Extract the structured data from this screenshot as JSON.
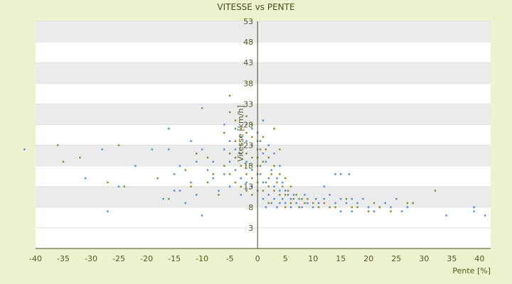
{
  "chart_data": {
    "type": "scatter",
    "title": "VITESSE vs PENTE",
    "xlabel": "Pente [%]",
    "ylabel": "Vitesse [km/h]",
    "xlim": [
      -40,
      42
    ],
    "ylim": [
      -2,
      53
    ],
    "x_ticks": [
      "-40",
      "-35",
      "-30",
      "-25",
      "-20",
      "-15",
      "-10",
      "-5",
      "0",
      "5",
      "10",
      "15",
      "20",
      "25",
      "30",
      "35",
      "40"
    ],
    "y_ticks": [
      "3",
      "8",
      "13",
      "18",
      "23",
      "28",
      "33",
      "38",
      "43",
      "48",
      "53"
    ],
    "y_tick_values": [
      3,
      8,
      13,
      18,
      23,
      28,
      33,
      38,
      43,
      48,
      53
    ],
    "grid": true,
    "legend": "none",
    "colors": {
      "series_a": "#3d8fe0",
      "series_b": "#8a8a1c",
      "band": "#ebebeb",
      "axis": "#4a4a1c"
    },
    "series": [
      {
        "values": [
          [
            -42,
            22
          ],
          [
            -31,
            15
          ],
          [
            -28,
            22
          ],
          [
            -27,
            7
          ],
          [
            -25,
            13
          ],
          [
            -22,
            18
          ],
          [
            -19,
            22
          ],
          [
            -17,
            10
          ],
          [
            -16,
            22
          ],
          [
            -16,
            27
          ],
          [
            -15,
            12
          ],
          [
            -15,
            16
          ],
          [
            -14,
            12
          ],
          [
            -14,
            18
          ],
          [
            -13,
            9
          ],
          [
            -12,
            14
          ],
          [
            -12,
            24
          ],
          [
            -11,
            19
          ],
          [
            -11,
            11
          ],
          [
            -10,
            22
          ],
          [
            -10,
            6
          ],
          [
            -9,
            17
          ],
          [
            -8,
            15
          ],
          [
            -8,
            19
          ],
          [
            -7,
            12
          ],
          [
            -6,
            22
          ],
          [
            -6,
            16
          ],
          [
            -6,
            28
          ],
          [
            -5,
            24
          ],
          [
            -5,
            19
          ],
          [
            -5,
            13
          ],
          [
            -4,
            27
          ],
          [
            -4,
            22
          ],
          [
            -4,
            17
          ],
          [
            -3,
            25
          ],
          [
            -3,
            21
          ],
          [
            -3,
            15
          ],
          [
            -3,
            11
          ],
          [
            -2,
            28
          ],
          [
            -2,
            24
          ],
          [
            -2,
            19
          ],
          [
            -2,
            14
          ],
          [
            -1,
            27
          ],
          [
            -1,
            23
          ],
          [
            -1,
            17
          ],
          [
            -1,
            13
          ],
          [
            0,
            26
          ],
          [
            0,
            22
          ],
          [
            0,
            18
          ],
          [
            0,
            12
          ],
          [
            0.5,
            24
          ],
          [
            0.5,
            16
          ],
          [
            1,
            29
          ],
          [
            1,
            21
          ],
          [
            1,
            14
          ],
          [
            1,
            10
          ],
          [
            1.5,
            19
          ],
          [
            1.5,
            8
          ],
          [
            2,
            23
          ],
          [
            2,
            15
          ],
          [
            2,
            11
          ],
          [
            2.5,
            17
          ],
          [
            2.5,
            9
          ],
          [
            3,
            21
          ],
          [
            3,
            13
          ],
          [
            3,
            10
          ],
          [
            3.5,
            15
          ],
          [
            3.5,
            8
          ],
          [
            4,
            18
          ],
          [
            4,
            12
          ],
          [
            4,
            9
          ],
          [
            4.5,
            14
          ],
          [
            4.5,
            10
          ],
          [
            5,
            12
          ],
          [
            5,
            9
          ],
          [
            5.5,
            11
          ],
          [
            6,
            10
          ],
          [
            6,
            8
          ],
          [
            6.5,
            11
          ],
          [
            7,
            9
          ],
          [
            7.5,
            10
          ],
          [
            8,
            8
          ],
          [
            8.5,
            11
          ],
          [
            9,
            9
          ],
          [
            10,
            8
          ],
          [
            10.5,
            10
          ],
          [
            11,
            9
          ],
          [
            12,
            13
          ],
          [
            12,
            10
          ],
          [
            13,
            11
          ],
          [
            14,
            16
          ],
          [
            14,
            9
          ],
          [
            15,
            16
          ],
          [
            15,
            10
          ],
          [
            15,
            7
          ],
          [
            16,
            9
          ],
          [
            16.5,
            16
          ],
          [
            17,
            7
          ],
          [
            17,
            10
          ],
          [
            18,
            9
          ],
          [
            19,
            10
          ],
          [
            20,
            8
          ],
          [
            21,
            7
          ],
          [
            22,
            8
          ],
          [
            23,
            9
          ],
          [
            24,
            8
          ],
          [
            25,
            10
          ],
          [
            26,
            7
          ],
          [
            27,
            8
          ],
          [
            28,
            9
          ],
          [
            34,
            6
          ],
          [
            39,
            7
          ],
          [
            39,
            8
          ],
          [
            41,
            6
          ]
        ]
      },
      {
        "values": [
          [
            -36,
            23
          ],
          [
            -35,
            19
          ],
          [
            -32,
            20
          ],
          [
            -27,
            14
          ],
          [
            -25,
            23
          ],
          [
            -24,
            13
          ],
          [
            -18,
            15
          ],
          [
            -16,
            10
          ],
          [
            -13,
            17
          ],
          [
            -12,
            13
          ],
          [
            -11,
            21
          ],
          [
            -10,
            32
          ],
          [
            -9,
            20
          ],
          [
            -9,
            14
          ],
          [
            -8,
            16
          ],
          [
            -7,
            11
          ],
          [
            -6,
            18
          ],
          [
            -6,
            26
          ],
          [
            -5,
            35
          ],
          [
            -5,
            31
          ],
          [
            -5,
            21
          ],
          [
            -5,
            16
          ],
          [
            -4,
            29
          ],
          [
            -4,
            24
          ],
          [
            -4,
            20
          ],
          [
            -4,
            14
          ],
          [
            -3,
            27
          ],
          [
            -3,
            23
          ],
          [
            -3,
            18
          ],
          [
            -3,
            13
          ],
          [
            -2,
            30
          ],
          [
            -2,
            26
          ],
          [
            -2,
            21
          ],
          [
            -2,
            16
          ],
          [
            -2,
            12
          ],
          [
            -1,
            28
          ],
          [
            -1,
            25
          ],
          [
            -1,
            20
          ],
          [
            -1,
            15
          ],
          [
            -1,
            11
          ],
          [
            0,
            24
          ],
          [
            0,
            20
          ],
          [
            0,
            16
          ],
          [
            0,
            14
          ],
          [
            0.5,
            22
          ],
          [
            0.5,
            18
          ],
          [
            1,
            25
          ],
          [
            1,
            19
          ],
          [
            1,
            12
          ],
          [
            1.5,
            22
          ],
          [
            1.5,
            14
          ],
          [
            2,
            20
          ],
          [
            2,
            13
          ],
          [
            2,
            9
          ],
          [
            2.5,
            16
          ],
          [
            3,
            27
          ],
          [
            3,
            18
          ],
          [
            3,
            12
          ],
          [
            3.5,
            14
          ],
          [
            4,
            22
          ],
          [
            4,
            16
          ],
          [
            4,
            11
          ],
          [
            4.5,
            13
          ],
          [
            5,
            15
          ],
          [
            5,
            11
          ],
          [
            5,
            8
          ],
          [
            5.5,
            12
          ],
          [
            6,
            13
          ],
          [
            6,
            9
          ],
          [
            6.5,
            10
          ],
          [
            7,
            11
          ],
          [
            7.5,
            8
          ],
          [
            8,
            10
          ],
          [
            8.5,
            9
          ],
          [
            9,
            10
          ],
          [
            10,
            9
          ],
          [
            11,
            8
          ],
          [
            12,
            9
          ],
          [
            13,
            8
          ],
          [
            14,
            8
          ],
          [
            16,
            10
          ],
          [
            17,
            8
          ],
          [
            18,
            8
          ],
          [
            20,
            7
          ],
          [
            21,
            9
          ],
          [
            22,
            8
          ],
          [
            24,
            7
          ],
          [
            27,
            9
          ],
          [
            28,
            9
          ],
          [
            32,
            12
          ]
        ]
      }
    ]
  }
}
